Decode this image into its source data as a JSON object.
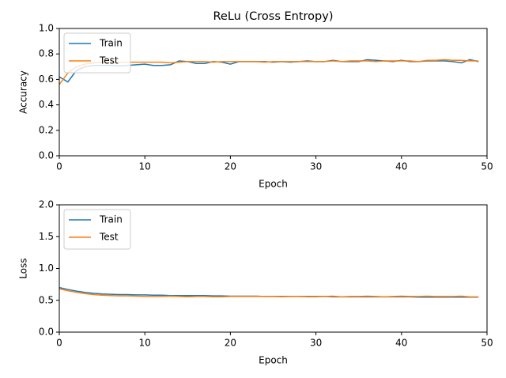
{
  "chart_data": [
    {
      "type": "line",
      "title": "ReLu (Cross Entropy)",
      "x_label": "Epoch",
      "y_label": "Accuracy",
      "x": [
        0,
        1,
        2,
        3,
        4,
        5,
        6,
        7,
        8,
        9,
        10,
        11,
        12,
        13,
        14,
        15,
        16,
        17,
        18,
        19,
        20,
        21,
        22,
        23,
        24,
        25,
        26,
        27,
        28,
        29,
        30,
        31,
        32,
        33,
        34,
        35,
        36,
        37,
        38,
        39,
        40,
        41,
        42,
        43,
        44,
        45,
        46,
        47,
        48,
        49
      ],
      "series": [
        {
          "name": "Train",
          "color": "#1f77b4",
          "values": [
            0.62,
            0.58,
            0.67,
            0.7,
            0.71,
            0.71,
            0.71,
            0.705,
            0.71,
            0.715,
            0.72,
            0.71,
            0.71,
            0.715,
            0.745,
            0.74,
            0.725,
            0.725,
            0.74,
            0.735,
            0.72,
            0.74,
            0.74,
            0.74,
            0.74,
            0.735,
            0.74,
            0.735,
            0.74,
            0.745,
            0.74,
            0.74,
            0.75,
            0.74,
            0.74,
            0.74,
            0.755,
            0.75,
            0.745,
            0.74,
            0.75,
            0.74,
            0.74,
            0.745,
            0.745,
            0.745,
            0.74,
            0.73,
            0.755,
            0.74
          ]
        },
        {
          "name": "Test",
          "color": "#ff7f0e",
          "values": [
            0.56,
            0.65,
            0.7,
            0.72,
            0.73,
            0.735,
            0.735,
            0.735,
            0.735,
            0.735,
            0.735,
            0.735,
            0.735,
            0.73,
            0.735,
            0.74,
            0.74,
            0.74,
            0.735,
            0.74,
            0.74,
            0.74,
            0.74,
            0.74,
            0.735,
            0.74,
            0.74,
            0.74,
            0.74,
            0.74,
            0.74,
            0.74,
            0.745,
            0.74,
            0.745,
            0.745,
            0.745,
            0.74,
            0.745,
            0.745,
            0.745,
            0.745,
            0.74,
            0.75,
            0.75,
            0.755,
            0.75,
            0.75,
            0.745,
            0.745
          ]
        }
      ],
      "xlim": [
        0,
        50
      ],
      "xticks": [
        0,
        10,
        20,
        30,
        40,
        50
      ],
      "ylim": [
        0,
        1
      ],
      "yticks": [
        {
          "value": 0,
          "label": "0.0"
        },
        0.2,
        0.4,
        0.6,
        0.8,
        {
          "value": 1,
          "label": "1.0"
        }
      ],
      "legend": "upper left",
      "grid": false
    },
    {
      "type": "line",
      "x_label": "Epoch",
      "y_label": "Loss",
      "x": [
        0,
        1,
        2,
        3,
        4,
        5,
        6,
        7,
        8,
        9,
        10,
        11,
        12,
        13,
        14,
        15,
        16,
        17,
        18,
        19,
        20,
        21,
        22,
        23,
        24,
        25,
        26,
        27,
        28,
        29,
        30,
        31,
        32,
        33,
        34,
        35,
        36,
        37,
        38,
        39,
        40,
        41,
        42,
        43,
        44,
        45,
        46,
        47,
        48,
        49
      ],
      "series": [
        {
          "name": "Train",
          "color": "#1f77b4",
          "values": [
            0.7,
            0.67,
            0.645,
            0.625,
            0.61,
            0.6,
            0.595,
            0.59,
            0.59,
            0.585,
            0.585,
            0.58,
            0.58,
            0.575,
            0.575,
            0.575,
            0.575,
            0.575,
            0.57,
            0.57,
            0.565,
            0.565,
            0.565,
            0.565,
            0.56,
            0.56,
            0.56,
            0.56,
            0.56,
            0.56,
            0.56,
            0.56,
            0.555,
            0.555,
            0.555,
            0.555,
            0.555,
            0.555,
            0.555,
            0.555,
            0.555,
            0.555,
            0.55,
            0.55,
            0.55,
            0.55,
            0.55,
            0.55,
            0.55,
            0.55
          ]
        },
        {
          "name": "Test",
          "color": "#ff7f0e",
          "values": [
            0.68,
            0.65,
            0.625,
            0.605,
            0.59,
            0.58,
            0.575,
            0.57,
            0.57,
            0.565,
            0.56,
            0.56,
            0.56,
            0.565,
            0.56,
            0.555,
            0.56,
            0.56,
            0.555,
            0.555,
            0.56,
            0.56,
            0.56,
            0.56,
            0.56,
            0.56,
            0.555,
            0.56,
            0.56,
            0.555,
            0.555,
            0.56,
            0.565,
            0.555,
            0.56,
            0.56,
            0.565,
            0.56,
            0.555,
            0.56,
            0.565,
            0.56,
            0.56,
            0.565,
            0.56,
            0.56,
            0.56,
            0.565,
            0.555,
            0.555
          ]
        }
      ],
      "xlim": [
        0,
        50
      ],
      "xticks": [
        0,
        10,
        20,
        30,
        40,
        50
      ],
      "ylim": [
        0,
        2
      ],
      "yticks": [
        {
          "value": 0,
          "label": "0.0"
        },
        0.5,
        {
          "value": 1,
          "label": "1.0"
        },
        1.5,
        {
          "value": 2,
          "label": "2.0"
        }
      ],
      "legend": "upper left",
      "grid": false
    }
  ]
}
